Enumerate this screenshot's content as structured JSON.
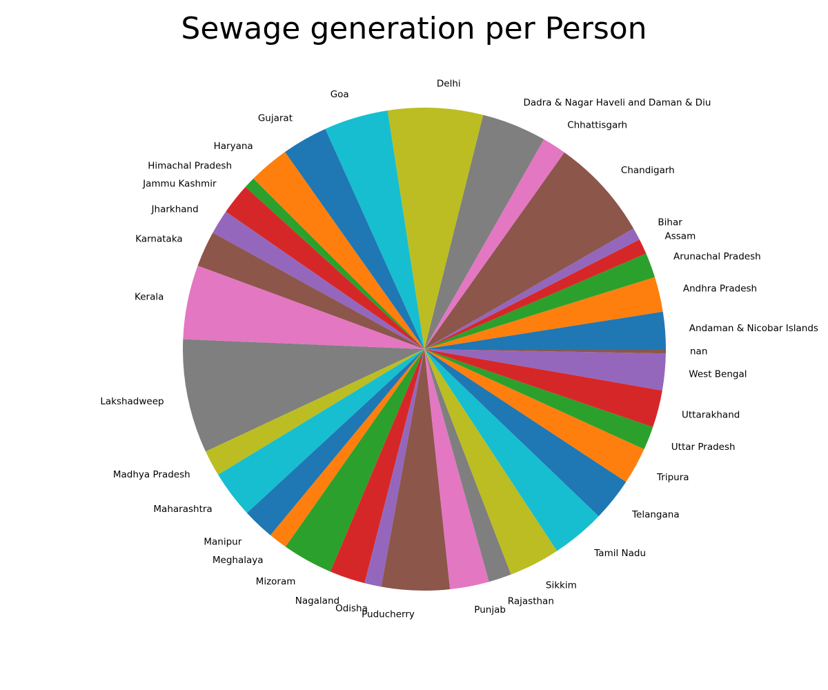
{
  "chart_data": {
    "type": "pie",
    "title": "Sewage generation per Person",
    "start_angle_deg": 0,
    "direction": "counterclockwise",
    "slices": [
      {
        "label": "Andaman & Nicobar Islands",
        "value": 2.87,
        "color": "#1f77b4"
      },
      {
        "label": "Andhra Pradesh",
        "value": 2.71,
        "color": "#ff7f0e"
      },
      {
        "label": "Arunachal Pradesh",
        "value": 1.92,
        "color": "#2ca02c"
      },
      {
        "label": "Assam",
        "value": 1.18,
        "color": "#d62728"
      },
      {
        "label": "Bihar",
        "value": 0.96,
        "color": "#9467bd"
      },
      {
        "label": "Chandigarh",
        "value": 7.9,
        "color": "#8c564b"
      },
      {
        "label": "Chhattisgarh",
        "value": 1.85,
        "color": "#e377c2"
      },
      {
        "label": "Dadra & Nagar Haveli and Daman & Diu",
        "value": 5.01,
        "color": "#7f7f7f"
      },
      {
        "label": "Delhi",
        "value": 7.35,
        "color": "#bcbd22"
      },
      {
        "label": "Goa",
        "value": 4.97,
        "color": "#17becf"
      },
      {
        "label": "Gujarat",
        "value": 3.55,
        "color": "#1f77b4"
      },
      {
        "label": "Haryana",
        "value": 3.15,
        "color": "#ff7f0e"
      },
      {
        "label": "Himachal Pradesh",
        "value": 0.88,
        "color": "#2ca02c"
      },
      {
        "label": "Jammu Kashmir",
        "value": 2.41,
        "color": "#d62728"
      },
      {
        "label": "Jharkhand",
        "value": 1.89,
        "color": "#9467bd"
      },
      {
        "label": "Karnataka",
        "value": 2.77,
        "color": "#8c564b"
      },
      {
        "label": "Kerala",
        "value": 5.74,
        "color": "#e377c2"
      },
      {
        "label": "Lakshadweep",
        "value": 8.82,
        "color": "#7f7f7f"
      },
      {
        "label": "Madhya Pradesh",
        "value": 2.01,
        "color": "#bcbd22"
      },
      {
        "label": "Maharashtra",
        "value": 3.66,
        "color": "#17becf"
      },
      {
        "label": "Manipur",
        "value": 2.47,
        "color": "#1f77b4"
      },
      {
        "label": "Meghalaya",
        "value": 1.45,
        "color": "#ff7f0e"
      },
      {
        "label": "Mizoram",
        "value": 3.92,
        "color": "#2ca02c"
      },
      {
        "label": "Nagaland",
        "value": 2.75,
        "color": "#d62728"
      },
      {
        "label": "Odisha",
        "value": 1.3,
        "color": "#9467bd"
      },
      {
        "label": "Puducherry",
        "value": 5.27,
        "color": "#8c564b"
      },
      {
        "label": "Punjab",
        "value": 3.03,
        "color": "#e377c2"
      },
      {
        "label": "Rajasthan",
        "value": 1.77,
        "color": "#7f7f7f"
      },
      {
        "label": "Sikkim",
        "value": 3.95,
        "color": "#bcbd22"
      },
      {
        "label": "Tamil Nadu",
        "value": 4.15,
        "color": "#17becf"
      },
      {
        "label": "Telangana",
        "value": 3.35,
        "color": "#1f77b4"
      },
      {
        "label": "Tripura",
        "value": 2.85,
        "color": "#ff7f0e"
      },
      {
        "label": "Uttar Pradesh",
        "value": 1.82,
        "color": "#2ca02c"
      },
      {
        "label": "Uttarakhand",
        "value": 2.88,
        "color": "#d62728"
      },
      {
        "label": "West Bengal",
        "value": 2.84,
        "color": "#9467bd"
      },
      {
        "label": "nan",
        "value": 0.33,
        "color": "#8c564b"
      }
    ]
  }
}
